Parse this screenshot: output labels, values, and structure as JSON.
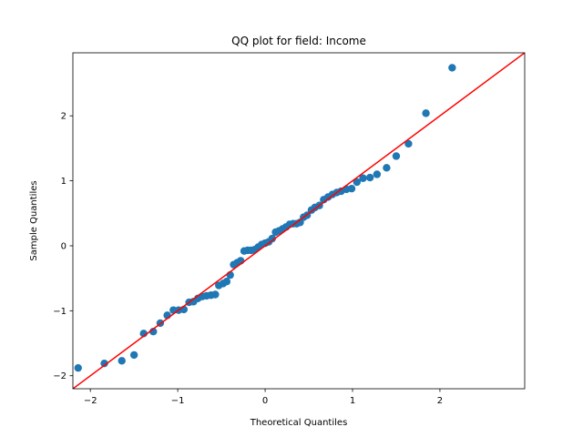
{
  "chart_data": {
    "type": "scatter",
    "title": "QQ plot for field: Income",
    "xlabel": "Theoretical Quantiles",
    "ylabel": "Sample Quantiles",
    "xlim": [
      -2.2,
      2.97
    ],
    "ylim": [
      -2.2,
      2.97
    ],
    "xticks": [
      -2,
      -1,
      0,
      1,
      2
    ],
    "yticks": [
      -2,
      -1,
      0,
      1,
      2
    ],
    "tick_labels_x": [
      "−2",
      "−1",
      "0",
      "1",
      "2"
    ],
    "tick_labels_y": [
      "−2",
      "−1",
      "0",
      "1",
      "2"
    ],
    "point_color": "#1f77b4",
    "line_color": "#ff0000",
    "reference_line": {
      "slope": 1,
      "intercept": 0
    },
    "grid": false,
    "points": [
      [
        -2.14,
        -1.88
      ],
      [
        -1.84,
        -1.81
      ],
      [
        -1.64,
        -1.77
      ],
      [
        -1.5,
        -1.68
      ],
      [
        -1.39,
        -1.35
      ],
      [
        -1.28,
        -1.32
      ],
      [
        -1.2,
        -1.19
      ],
      [
        -1.12,
        -1.07
      ],
      [
        -1.05,
        -0.99
      ],
      [
        -0.99,
        -0.99
      ],
      [
        -0.93,
        -0.98
      ],
      [
        -0.87,
        -0.87
      ],
      [
        -0.82,
        -0.86
      ],
      [
        -0.77,
        -0.81
      ],
      [
        -0.72,
        -0.78
      ],
      [
        -0.67,
        -0.77
      ],
      [
        -0.62,
        -0.76
      ],
      [
        -0.57,
        -0.75
      ],
      [
        -0.53,
        -0.61
      ],
      [
        -0.48,
        -0.58
      ],
      [
        -0.44,
        -0.55
      ],
      [
        -0.4,
        -0.45
      ],
      [
        -0.36,
        -0.29
      ],
      [
        -0.32,
        -0.26
      ],
      [
        -0.28,
        -0.23
      ],
      [
        -0.24,
        -0.08
      ],
      [
        -0.2,
        -0.07
      ],
      [
        -0.16,
        -0.07
      ],
      [
        -0.12,
        -0.06
      ],
      [
        -0.08,
        -0.02
      ],
      [
        -0.04,
        0.02
      ],
      [
        0.0,
        0.04
      ],
      [
        0.04,
        0.06
      ],
      [
        0.08,
        0.11
      ],
      [
        0.12,
        0.21
      ],
      [
        0.16,
        0.23
      ],
      [
        0.2,
        0.26
      ],
      [
        0.24,
        0.29
      ],
      [
        0.28,
        0.33
      ],
      [
        0.32,
        0.34
      ],
      [
        0.36,
        0.34
      ],
      [
        0.4,
        0.36
      ],
      [
        0.44,
        0.44
      ],
      [
        0.48,
        0.47
      ],
      [
        0.53,
        0.55
      ],
      [
        0.57,
        0.59
      ],
      [
        0.62,
        0.62
      ],
      [
        0.67,
        0.71
      ],
      [
        0.72,
        0.75
      ],
      [
        0.77,
        0.79
      ],
      [
        0.82,
        0.82
      ],
      [
        0.87,
        0.84
      ],
      [
        0.93,
        0.87
      ],
      [
        0.99,
        0.88
      ],
      [
        1.05,
        0.98
      ],
      [
        1.12,
        1.04
      ],
      [
        1.2,
        1.05
      ],
      [
        1.28,
        1.1
      ],
      [
        1.39,
        1.2
      ],
      [
        1.5,
        1.38
      ],
      [
        1.64,
        1.57
      ],
      [
        1.84,
        2.04
      ],
      [
        2.14,
        2.74
      ]
    ]
  }
}
